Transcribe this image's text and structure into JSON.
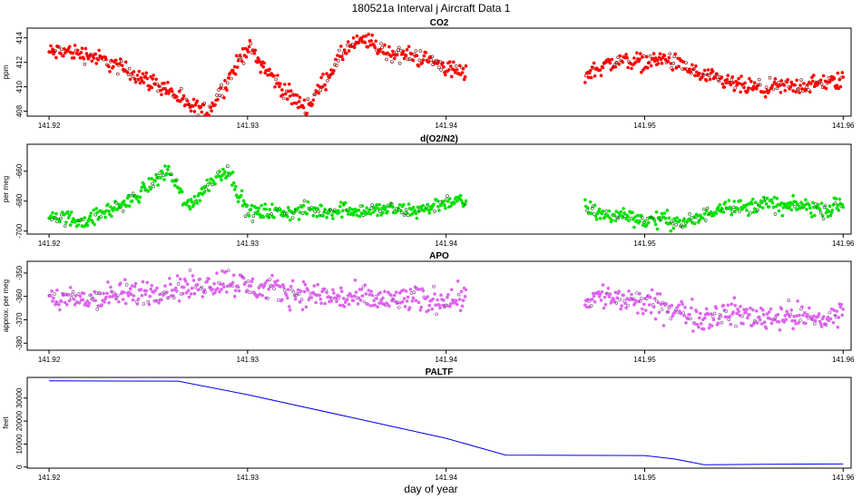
{
  "page": {
    "title": "180521a   Interval j Aircraft Data 1",
    "xlabel": "day of year"
  },
  "chart_data": [
    {
      "type": "scatter",
      "title": "CO2",
      "ylabel": "ppm",
      "color": "#ff0000",
      "xlim": [
        141.9189,
        141.9604
      ],
      "ylim": [
        407.6,
        414.8
      ],
      "yticks": [
        408,
        410,
        412,
        414
      ],
      "xticks": [
        141.92,
        141.93,
        141.94,
        141.95,
        141.96
      ],
      "series": [
        {
          "x": [
            141.92,
            141.921,
            141.922,
            141.923,
            141.924,
            141.925,
            141.926,
            141.927,
            141.928,
            141.929,
            141.93,
            141.931,
            141.932,
            141.933,
            141.934,
            141.935,
            141.936,
            141.937,
            141.938,
            141.939,
            141.94,
            141.941
          ],
          "y": [
            412.8,
            412.9,
            412.6,
            412.0,
            411.3,
            410.5,
            409.8,
            408.4,
            408.0,
            410.5,
            413.3,
            411.3,
            409.4,
            408.3,
            410.8,
            413.2,
            413.8,
            412.8,
            412.6,
            412.3,
            411.6,
            411.0
          ]
        },
        {
          "x": [
            141.947,
            141.948,
            141.949,
            141.95,
            141.951,
            141.952,
            141.953,
            141.954,
            141.955,
            141.956,
            141.957,
            141.958,
            141.959,
            141.96
          ],
          "y": [
            411.0,
            411.8,
            412.2,
            412.0,
            412.3,
            411.6,
            410.8,
            410.4,
            410.0,
            409.8,
            410.0,
            410.1,
            410.3,
            410.5
          ]
        }
      ]
    },
    {
      "type": "scatter",
      "title": "d(O2/N2)",
      "ylabel": "per meg",
      "color": "#00e000",
      "xlim": [
        141.9189,
        141.9604
      ],
      "ylim": [
        -702,
        -642
      ],
      "yticks": [
        -700,
        -680,
        -660
      ],
      "xticks": [
        141.92,
        141.93,
        141.94,
        141.95,
        141.96
      ],
      "series": [
        {
          "x": [
            141.92,
            141.921,
            141.922,
            141.923,
            141.924,
            141.925,
            141.926,
            141.927,
            141.928,
            141.929,
            141.93,
            141.931,
            141.932,
            141.933,
            141.934,
            141.935,
            141.936,
            141.937,
            141.938,
            141.939,
            141.94,
            141.941
          ],
          "y": [
            -689,
            -692,
            -693,
            -686,
            -681,
            -670,
            -659,
            -684,
            -669,
            -658,
            -688,
            -687,
            -688,
            -686,
            -687,
            -685,
            -687,
            -685,
            -687,
            -685,
            -680,
            -681
          ]
        },
        {
          "x": [
            141.947,
            141.948,
            141.949,
            141.95,
            141.951,
            141.952,
            141.953,
            141.954,
            141.955,
            141.956,
            141.957,
            141.958,
            141.959,
            141.96
          ],
          "y": [
            -684,
            -690,
            -689,
            -693,
            -692,
            -695,
            -690,
            -682,
            -685,
            -681,
            -684,
            -683,
            -686,
            -682
          ]
        }
      ]
    },
    {
      "type": "scatter",
      "title": "APO",
      "ylabel": "approx. per meg",
      "color": "#dd66ee",
      "xlim": [
        141.9189,
        141.9604
      ],
      "ylim": [
        -383,
        -345
      ],
      "yticks": [
        -380,
        -370,
        -360,
        -350
      ],
      "xticks": [
        141.92,
        141.93,
        141.94,
        141.95,
        141.96
      ],
      "series": [
        {
          "x": [
            141.92,
            141.921,
            141.922,
            141.923,
            141.924,
            141.925,
            141.926,
            141.927,
            141.928,
            141.929,
            141.93,
            141.931,
            141.932,
            141.933,
            141.934,
            141.935,
            141.936,
            141.937,
            141.938,
            141.939,
            141.94,
            141.941
          ],
          "y": [
            -360,
            -362,
            -361,
            -360,
            -359,
            -358,
            -357,
            -356,
            -355,
            -353,
            -356,
            -357,
            -358,
            -359,
            -360,
            -361,
            -361,
            -362,
            -361,
            -362,
            -361,
            -360
          ]
        },
        {
          "x": [
            141.947,
            141.948,
            141.949,
            141.95,
            141.951,
            141.952,
            141.953,
            141.954,
            141.955,
            141.956,
            141.957,
            141.958,
            141.959,
            141.96
          ],
          "y": [
            -361,
            -360,
            -362,
            -363,
            -365,
            -367,
            -369,
            -367,
            -368,
            -369,
            -368,
            -369,
            -370,
            -367
          ]
        }
      ]
    },
    {
      "type": "line",
      "title": "PALTF",
      "ylabel": "feet",
      "color": "#0000ee",
      "xlim": [
        141.9189,
        141.9604
      ],
      "ylim": [
        -500,
        39000
      ],
      "yticks": [
        0,
        10000,
        20000,
        30000
      ],
      "xticks": [
        141.92,
        141.93,
        141.94,
        141.95,
        141.96
      ],
      "series": [
        {
          "x": [
            141.92,
            141.9265,
            141.93,
            141.935,
            141.94,
            141.943,
            141.95,
            141.9515,
            141.953,
            141.956,
            141.96
          ],
          "y": [
            37500,
            37400,
            31500,
            22000,
            12500,
            5200,
            5000,
            3500,
            1000,
            1200,
            1300
          ]
        }
      ]
    }
  ]
}
